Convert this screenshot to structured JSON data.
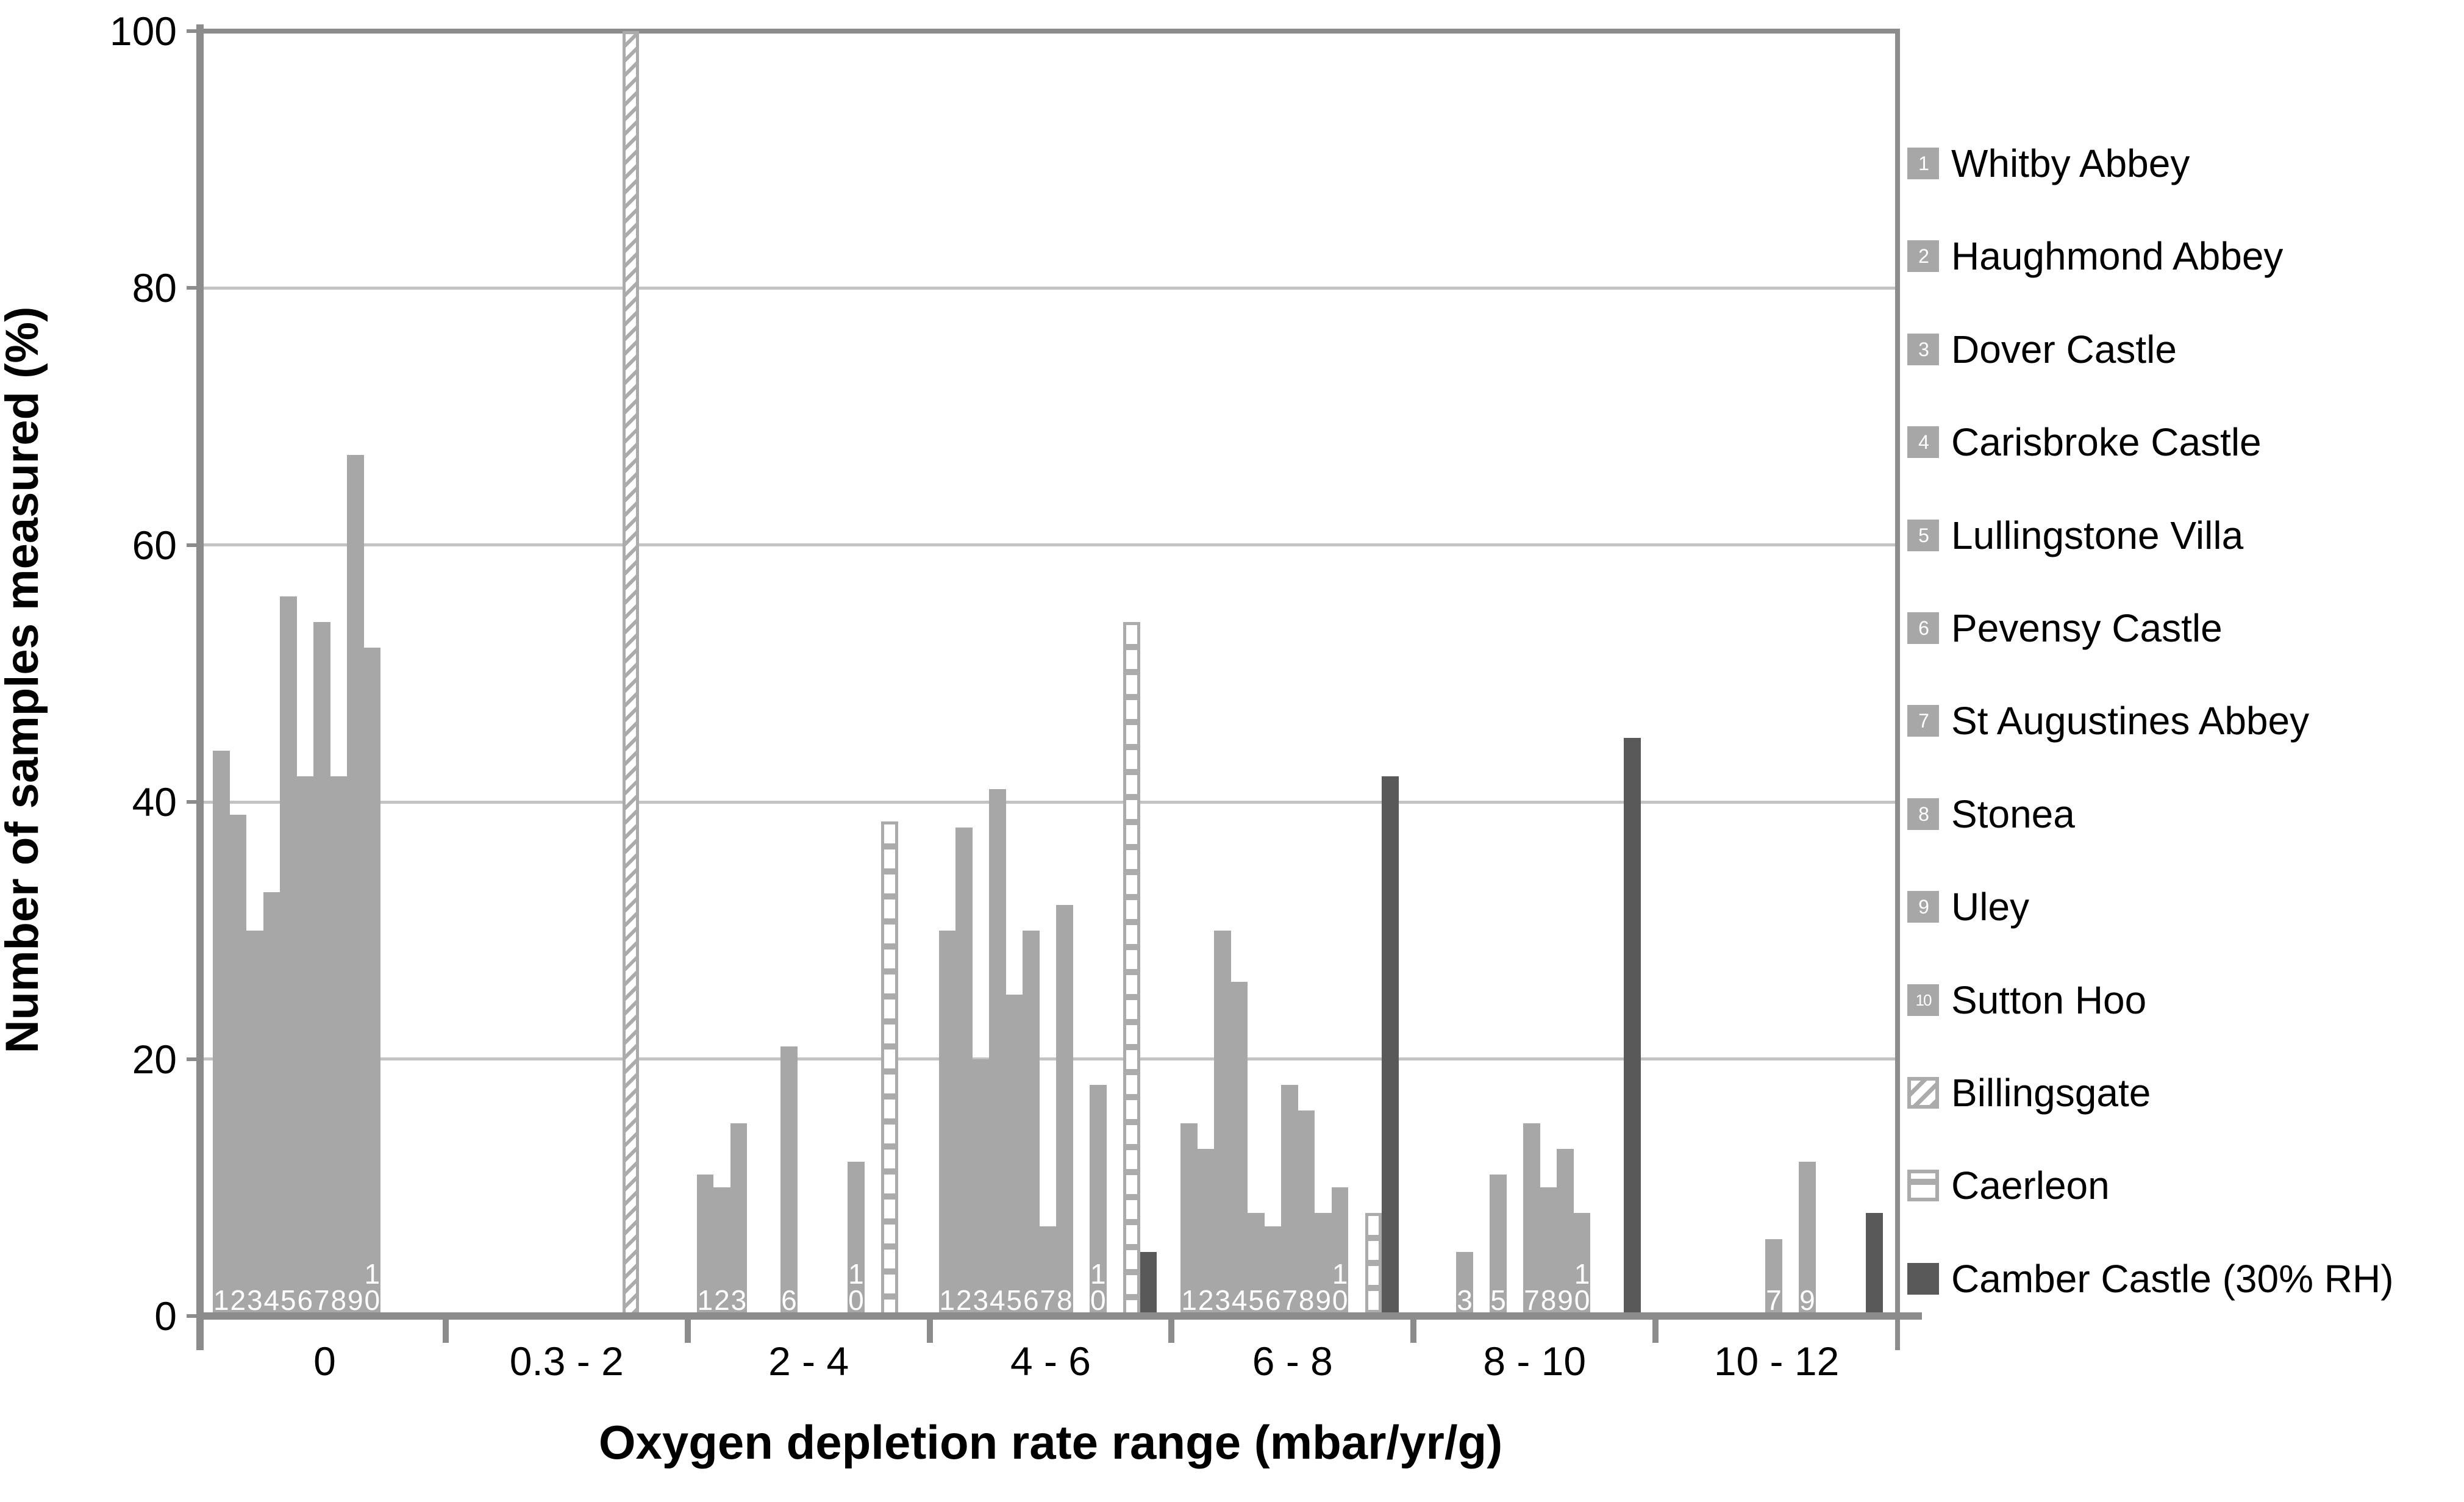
{
  "chart_data": {
    "type": "bar",
    "title": "",
    "xlabel": "Oxygen depletion rate range (mbar/yr/g)",
    "ylabel": "Number of samples measured (%)",
    "ylim": [
      0,
      100
    ],
    "yticks": [
      0,
      20,
      40,
      60,
      80,
      100
    ],
    "grid": true,
    "legend_position": "right",
    "categories": [
      "0",
      "0.3 - 2",
      "2 - 4",
      "4 - 6",
      "6 - 8",
      "8 - 10",
      "10 - 12"
    ],
    "series": [
      {
        "key": "whitby",
        "bar_label": "1",
        "legend": "Whitby Abbey",
        "style": "solid-light",
        "values": [
          44,
          null,
          11,
          30,
          15,
          null,
          null
        ]
      },
      {
        "key": "haughmond",
        "bar_label": "2",
        "legend": "Haughmond Abbey",
        "style": "solid-light",
        "values": [
          39,
          null,
          10,
          38,
          13,
          null,
          null
        ]
      },
      {
        "key": "dover",
        "bar_label": "3",
        "legend": "Dover Castle",
        "style": "solid-light",
        "values": [
          30,
          null,
          15,
          20,
          30,
          5,
          null
        ]
      },
      {
        "key": "carisbroke",
        "bar_label": "4",
        "legend": "Carisbroke Castle",
        "style": "solid-light",
        "values": [
          33,
          null,
          null,
          41,
          26,
          null,
          null
        ]
      },
      {
        "key": "lullingstone",
        "bar_label": "5",
        "legend": "Lullingstone Villa",
        "style": "solid-light",
        "values": [
          56,
          null,
          null,
          25,
          8,
          11,
          null
        ]
      },
      {
        "key": "pevensy",
        "bar_label": "6",
        "legend": "Pevensy Castle",
        "style": "solid-light",
        "values": [
          42,
          null,
          21,
          30,
          7,
          null,
          null
        ]
      },
      {
        "key": "staugustines",
        "bar_label": "7",
        "legend": "St Augustines Abbey",
        "style": "solid-light",
        "values": [
          54,
          null,
          null,
          7,
          18,
          15,
          6
        ]
      },
      {
        "key": "stonea",
        "bar_label": "8",
        "legend": "Stonea",
        "style": "solid-light",
        "values": [
          42,
          null,
          null,
          32,
          16,
          10,
          null
        ]
      },
      {
        "key": "uley",
        "bar_label": "9",
        "legend": "Uley",
        "style": "solid-light",
        "values": [
          67,
          null,
          null,
          null,
          8,
          13,
          12
        ]
      },
      {
        "key": "suttonhoo",
        "bar_label": "10",
        "legend": "Sutton Hoo",
        "style": "solid-light",
        "values": [
          52,
          null,
          12,
          18,
          10,
          8,
          null
        ]
      },
      {
        "key": "billingsgate",
        "bar_label": null,
        "legend": "Billingsgate",
        "style": "diagonal-hatch",
        "values": [
          null,
          100,
          null,
          null,
          null,
          null,
          null
        ]
      },
      {
        "key": "caerleon",
        "bar_label": null,
        "legend": "Caerleon",
        "style": "ladder",
        "values": [
          null,
          null,
          38.5,
          54,
          8,
          null,
          null
        ]
      },
      {
        "key": "camber",
        "bar_label": null,
        "legend": "Camber Castle (30% RH)",
        "style": "solid-dark",
        "values": [
          null,
          null,
          null,
          5,
          42,
          45,
          8
        ]
      }
    ]
  },
  "colors": {
    "bar_light": "#A7A7A7",
    "bar_dark": "#595959",
    "gridline": "#C3C3C3",
    "axis": "#8C8C8C",
    "pattern": "#ABABAB",
    "bar_label": "#FFFFFF",
    "text": "#000000",
    "background": "#FFFFFF"
  }
}
